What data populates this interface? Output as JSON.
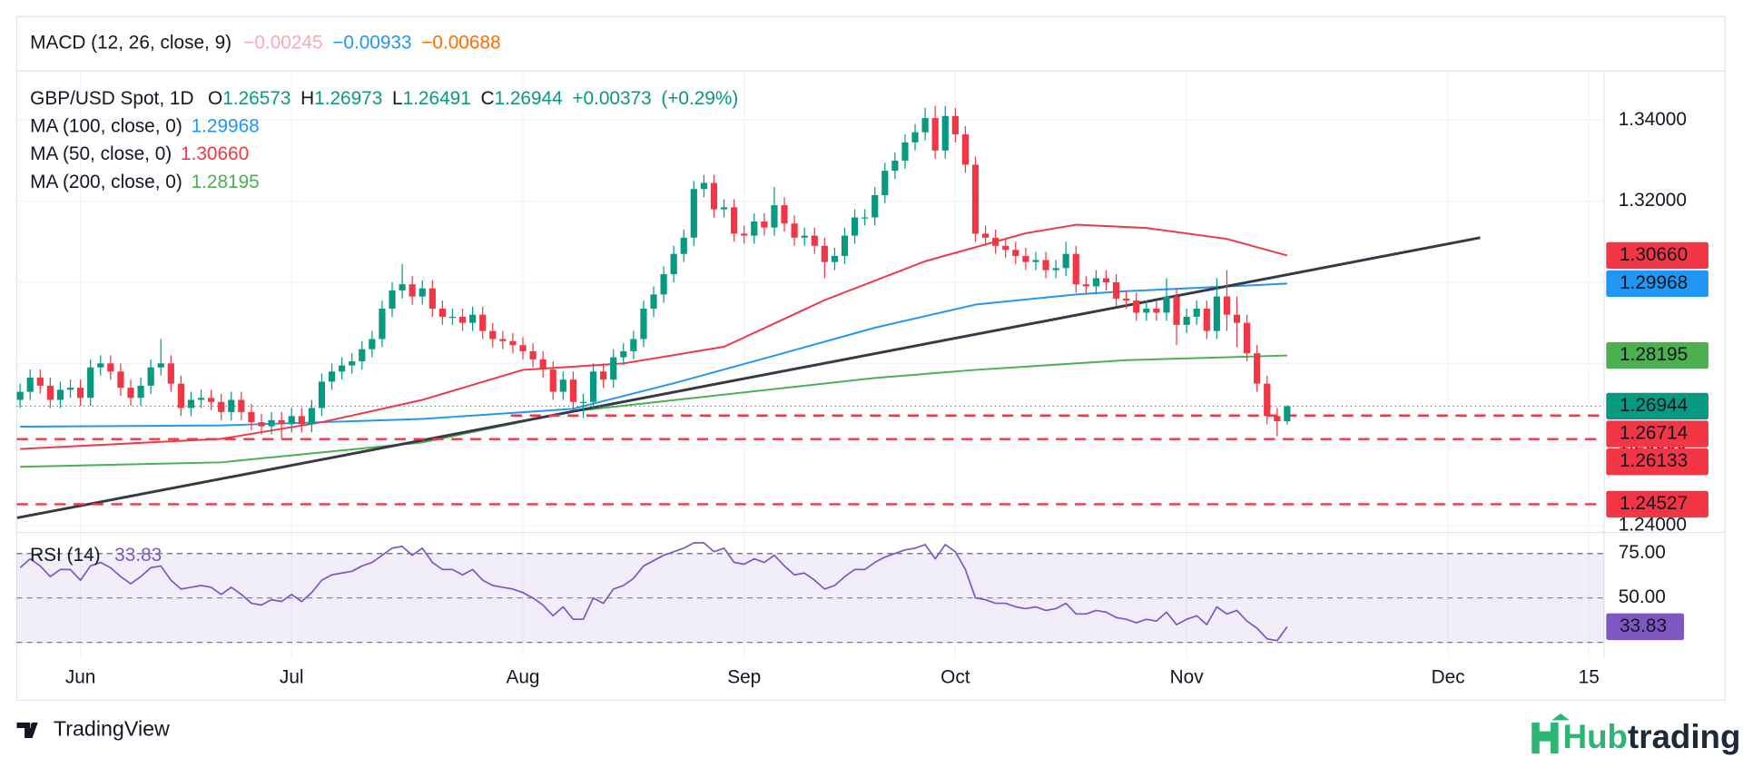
{
  "macd": {
    "title": "MACD (12, 26, close, 9)",
    "values": [
      "−0.00245",
      "−0.00933",
      "−0.00688"
    ]
  },
  "chart_data": [
    {
      "type": "candlestick",
      "title": "GBP/USD Spot, 1D",
      "ohlc_labels": [
        "O",
        "H",
        "L",
        "C"
      ],
      "change": "+0.00373",
      "change_pct": "(+0.29%)",
      "up_color": "#089981",
      "down_color": "#f23645",
      "open": [
        1.271,
        1.273,
        1.2765,
        1.2745,
        1.271,
        1.2735,
        1.274,
        1.2715,
        1.279,
        1.28,
        1.278,
        1.274,
        1.2715,
        1.2745,
        1.279,
        1.28,
        1.275,
        1.269,
        1.271,
        1.2715,
        1.2705,
        1.268,
        1.271,
        1.268,
        1.2655,
        1.2645,
        1.266,
        1.265,
        1.267,
        1.265,
        1.269,
        1.2755,
        1.278,
        1.2795,
        1.2805,
        1.2835,
        1.286,
        1.2935,
        1.298,
        1.2995,
        1.2965,
        1.2985,
        1.2935,
        1.2915,
        1.2915,
        1.29,
        1.292,
        1.288,
        1.286,
        1.2855,
        1.2845,
        1.283,
        1.281,
        1.2785,
        1.273,
        1.276,
        1.2705,
        1.2705,
        1.278,
        1.276,
        1.2815,
        1.283,
        1.286,
        1.2935,
        1.297,
        1.302,
        1.307,
        1.311,
        1.323,
        1.3245,
        1.318,
        1.3185,
        1.312,
        1.3115,
        1.315,
        1.3135,
        1.319,
        1.3145,
        1.311,
        1.3115,
        1.309,
        1.305,
        1.3065,
        1.3115,
        1.316,
        1.316,
        1.3215,
        1.3275,
        1.33,
        1.3345,
        1.337,
        1.3405,
        1.3325,
        1.341,
        1.3365,
        1.329,
        1.312,
        1.311,
        1.309,
        1.308,
        1.3065,
        1.305,
        1.3055,
        1.303,
        1.3035,
        1.307,
        1.2995,
        1.299,
        1.301,
        1.3,
        1.296,
        1.2955,
        1.2925,
        1.2935,
        1.2925,
        1.2965,
        1.2895,
        1.2915,
        1.2935,
        1.288,
        1.2965,
        1.292,
        1.29,
        1.2825,
        1.275,
        1.267,
        1.26573
      ],
      "high": [
        1.275,
        1.2785,
        1.2785,
        1.2765,
        1.2755,
        1.276,
        1.276,
        1.281,
        1.282,
        1.282,
        1.28,
        1.276,
        1.2765,
        1.281,
        1.286,
        1.282,
        1.277,
        1.273,
        1.2735,
        1.2735,
        1.2725,
        1.273,
        1.273,
        1.27,
        1.2675,
        1.268,
        1.268,
        1.269,
        1.269,
        1.271,
        1.2775,
        1.28,
        1.2815,
        1.2825,
        1.2855,
        1.288,
        1.2955,
        1.3,
        1.3045,
        1.3015,
        1.3005,
        1.3005,
        1.2955,
        1.2935,
        1.2935,
        1.294,
        1.294,
        1.29,
        1.288,
        1.2875,
        1.2865,
        1.285,
        1.283,
        1.2805,
        1.278,
        1.278,
        1.2725,
        1.28,
        1.28,
        1.2835,
        1.285,
        1.288,
        1.2955,
        1.299,
        1.304,
        1.309,
        1.313,
        1.325,
        1.3265,
        1.3265,
        1.3205,
        1.3205,
        1.314,
        1.317,
        1.317,
        1.3235,
        1.321,
        1.3165,
        1.3135,
        1.3135,
        1.311,
        1.3085,
        1.3135,
        1.318,
        1.318,
        1.3235,
        1.3295,
        1.332,
        1.3365,
        1.339,
        1.343,
        1.3435,
        1.3435,
        1.343,
        1.3385,
        1.331,
        1.314,
        1.313,
        1.311,
        1.31,
        1.3085,
        1.3075,
        1.3075,
        1.3055,
        1.31,
        1.309,
        1.3015,
        1.303,
        1.303,
        1.302,
        1.298,
        1.2975,
        1.2955,
        1.2955,
        1.301,
        1.2985,
        1.2935,
        1.2955,
        1.2955,
        1.301,
        1.303,
        1.2965,
        1.292,
        1.2845,
        1.277,
        1.269,
        1.26973
      ],
      "low": [
        1.269,
        1.271,
        1.2725,
        1.269,
        1.269,
        1.2715,
        1.2695,
        1.2695,
        1.277,
        1.276,
        1.272,
        1.2695,
        1.2695,
        1.2725,
        1.277,
        1.273,
        1.267,
        1.267,
        1.269,
        1.2685,
        1.266,
        1.266,
        1.266,
        1.2635,
        1.2625,
        1.2625,
        1.2615,
        1.263,
        1.263,
        1.263,
        1.267,
        1.2735,
        1.276,
        1.2775,
        1.2785,
        1.2815,
        1.284,
        1.2915,
        1.296,
        1.2945,
        1.2945,
        1.2915,
        1.2895,
        1.2895,
        1.288,
        1.288,
        1.286,
        1.284,
        1.2835,
        1.2825,
        1.281,
        1.279,
        1.2765,
        1.271,
        1.271,
        1.2685,
        1.2665,
        1.2685,
        1.274,
        1.274,
        1.2795,
        1.281,
        1.284,
        1.2915,
        1.295,
        1.3,
        1.305,
        1.309,
        1.321,
        1.316,
        1.316,
        1.31,
        1.3095,
        1.3095,
        1.3115,
        1.3115,
        1.3125,
        1.309,
        1.309,
        1.307,
        1.301,
        1.303,
        1.3045,
        1.3095,
        1.314,
        1.314,
        1.3195,
        1.3255,
        1.328,
        1.3325,
        1.335,
        1.3305,
        1.3305,
        1.3345,
        1.327,
        1.31,
        1.309,
        1.307,
        1.306,
        1.3045,
        1.303,
        1.303,
        1.301,
        1.301,
        1.3015,
        1.2975,
        1.297,
        1.297,
        1.298,
        1.294,
        1.2935,
        1.2905,
        1.2905,
        1.2905,
        1.2905,
        1.2845,
        1.2875,
        1.2895,
        1.286,
        1.286,
        1.288,
        1.284,
        1.2805,
        1.273,
        1.265,
        1.262,
        1.26491
      ],
      "close": [
        1.273,
        1.2765,
        1.2745,
        1.271,
        1.2735,
        1.274,
        1.2715,
        1.279,
        1.28,
        1.278,
        1.274,
        1.2715,
        1.2745,
        1.279,
        1.28,
        1.275,
        1.269,
        1.271,
        1.2715,
        1.2705,
        1.268,
        1.271,
        1.268,
        1.2655,
        1.2645,
        1.266,
        1.265,
        1.267,
        1.265,
        1.269,
        1.2755,
        1.278,
        1.2795,
        1.2805,
        1.2835,
        1.286,
        1.2935,
        1.298,
        1.2995,
        1.2965,
        1.2985,
        1.2935,
        1.2915,
        1.2915,
        1.29,
        1.292,
        1.288,
        1.286,
        1.2855,
        1.2845,
        1.283,
        1.281,
        1.2785,
        1.273,
        1.276,
        1.2705,
        1.2705,
        1.278,
        1.276,
        1.2815,
        1.283,
        1.286,
        1.2935,
        1.297,
        1.302,
        1.307,
        1.311,
        1.323,
        1.3245,
        1.318,
        1.3185,
        1.312,
        1.3115,
        1.315,
        1.3135,
        1.319,
        1.3145,
        1.311,
        1.3115,
        1.309,
        1.305,
        1.3065,
        1.3115,
        1.316,
        1.316,
        1.3215,
        1.3275,
        1.33,
        1.3345,
        1.337,
        1.3405,
        1.3325,
        1.341,
        1.3365,
        1.329,
        1.312,
        1.311,
        1.309,
        1.308,
        1.3065,
        1.305,
        1.3055,
        1.303,
        1.3035,
        1.307,
        1.2995,
        1.299,
        1.301,
        1.3,
        1.296,
        1.2955,
        1.2925,
        1.2935,
        1.2925,
        1.2965,
        1.2895,
        1.2915,
        1.2935,
        1.288,
        1.2965,
        1.292,
        1.29,
        1.2825,
        1.275,
        1.267,
        1.26573,
        1.26944
      ],
      "lines": [
        {
          "name": "MA (100, close, 0)",
          "color": "#2196f3",
          "x": [
            0,
            20,
            40,
            55,
            65,
            75,
            85,
            95,
            105,
            110,
            126
          ],
          "values": [
            1.2644,
            1.2647,
            1.2663,
            1.2688,
            1.2751,
            1.2819,
            1.2888,
            1.2945,
            1.297,
            1.2978,
            1.29968
          ],
          "last": {
            "value": 1.29968,
            "label": "1.29968"
          }
        },
        {
          "name": "MA (50, close, 0)",
          "color": "#f23645",
          "x": [
            0,
            20,
            30,
            40,
            50,
            60,
            70,
            80,
            90,
            100,
            105,
            112,
            120,
            126
          ],
          "values": [
            1.2589,
            1.2614,
            1.2655,
            1.271,
            1.2784,
            1.28,
            1.2841,
            1.2956,
            1.3052,
            1.3121,
            1.3142,
            1.3134,
            1.3107,
            1.3066
          ],
          "last": {
            "value": 1.3066,
            "label": "1.30660"
          }
        },
        {
          "name": "MA (200, close, 0)",
          "color": "#4caf50",
          "x": [
            0,
            20,
            40,
            55,
            70,
            85,
            95,
            110,
            126
          ],
          "values": [
            1.2545,
            1.2556,
            1.2605,
            1.2682,
            1.2723,
            1.2764,
            1.2784,
            1.2808,
            1.28195
          ],
          "last": {
            "value": 1.28195,
            "label": "1.28195"
          }
        }
      ],
      "trendline": {
        "color": "#363a45",
        "x": [
          -0.3,
          145.2
        ],
        "values": [
          1.2419,
          1.311
        ]
      },
      "levels": [
        {
          "value": 1.26714,
          "x_start": 48.8,
          "color": "#f23645"
        },
        {
          "value": 1.26133,
          "color": "#f23645"
        },
        {
          "value": 1.24527,
          "color": "#f23645"
        }
      ],
      "xlim": [
        -0.33,
        157.5
      ],
      "xticks": [
        {
          "value": 6,
          "label": "Jun"
        },
        {
          "value": 27,
          "label": "Jul"
        },
        {
          "value": 50,
          "label": "Aug"
        },
        {
          "value": 72,
          "label": "Sep"
        },
        {
          "value": 93,
          "label": "Oct"
        },
        {
          "value": 116,
          "label": "Nov"
        },
        {
          "value": 142,
          "label": "Dec"
        },
        {
          "value": 156,
          "label": "15"
        }
      ],
      "ylim": [
        1.2386,
        1.3518
      ],
      "yticks": [
        {
          "value": 1.24,
          "label": "1.24000"
        },
        {
          "value": 1.26,
          "label": "1.26000"
        },
        {
          "value": 1.28,
          "label": "1.28000"
        },
        {
          "value": 1.3,
          "label": "1.30000"
        },
        {
          "value": 1.32,
          "label": "1.32000"
        },
        {
          "value": 1.34,
          "label": "1.34000"
        }
      ],
      "grid": true
    },
    {
      "type": "line",
      "title": "RSI (14)",
      "color": "#7e57c2",
      "values": [
        67,
        72,
        68,
        62,
        66,
        66,
        60,
        68,
        70,
        67,
        62,
        58,
        62,
        67,
        68,
        60,
        55,
        56,
        57,
        56,
        52,
        56,
        52,
        47,
        46,
        49,
        48,
        52,
        48,
        53,
        60,
        63,
        64,
        65,
        68,
        70,
        74,
        78,
        79,
        74,
        78,
        70,
        66,
        66,
        63,
        66,
        60,
        57,
        56,
        55,
        53,
        50,
        46,
        40,
        45,
        38,
        38,
        50,
        47,
        55,
        57,
        61,
        68,
        71,
        74,
        76,
        78,
        81,
        81,
        76,
        78,
        70,
        69,
        72,
        70,
        74,
        68,
        63,
        64,
        60,
        55,
        57,
        62,
        66,
        66,
        70,
        73,
        75,
        77,
        78,
        80,
        72,
        80,
        76,
        66,
        50,
        49,
        47,
        47,
        45,
        44,
        45,
        43,
        44,
        47,
        41,
        41,
        43,
        42,
        39,
        38,
        36,
        38,
        37,
        42,
        35,
        38,
        40,
        35,
        45,
        41,
        43,
        37,
        33,
        27,
        26,
        33.83
      ],
      "bands": [
        25,
        75
      ],
      "ylim": [
        16.25,
        86.25
      ],
      "yticks": [
        {
          "value": 50,
          "label": "50.00"
        },
        {
          "value": 75,
          "label": "75.00"
        }
      ]
    }
  ],
  "footer": {
    "brand": "TradingView",
    "logo_parts": [
      "Hub",
      "trading"
    ]
  }
}
